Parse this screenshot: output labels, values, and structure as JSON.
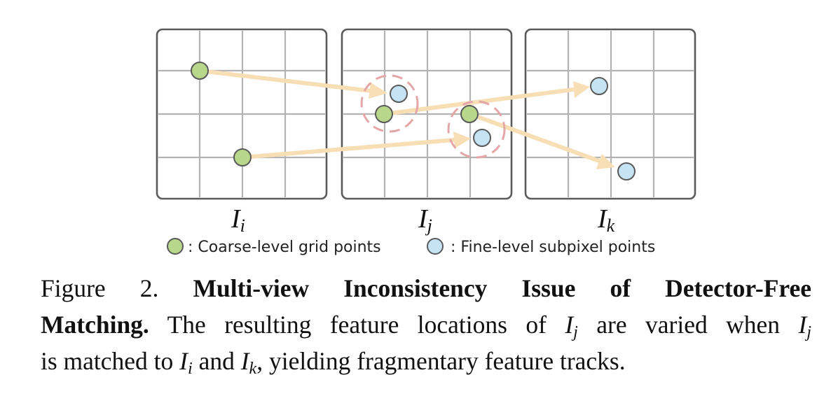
{
  "panels": [
    {
      "label": "I",
      "subscript": "i"
    },
    {
      "label": "I",
      "subscript": "j"
    },
    {
      "label": "I",
      "subscript": "k"
    }
  ],
  "legend": {
    "coarse_label": ": Coarse-level grid points",
    "fine_label": ": Fine-level subpixel points"
  },
  "colors": {
    "coarse_point": "#b8d78a",
    "fine_point": "#c5e3f2",
    "arrow": "#f7deb5",
    "inconsistency_ring": "#e4a6a8",
    "grid": "#b3b3b3",
    "frame": "#5a5a5a"
  },
  "caption": {
    "figure_number": "Figure 2.",
    "title_part1": "Multi-view Inconsistency Issue of Detector-Free",
    "title_part2": "Matching.",
    "text_1": " The resulting feature locations of ",
    "var_I": "I",
    "sub_j": "j",
    "text_2": " are varied when ",
    "text_3": "is matched to ",
    "sub_i": "i",
    "text_4": " and ",
    "sub_k": "k",
    "text_5": ", yielding fragmentary feature tracks."
  }
}
